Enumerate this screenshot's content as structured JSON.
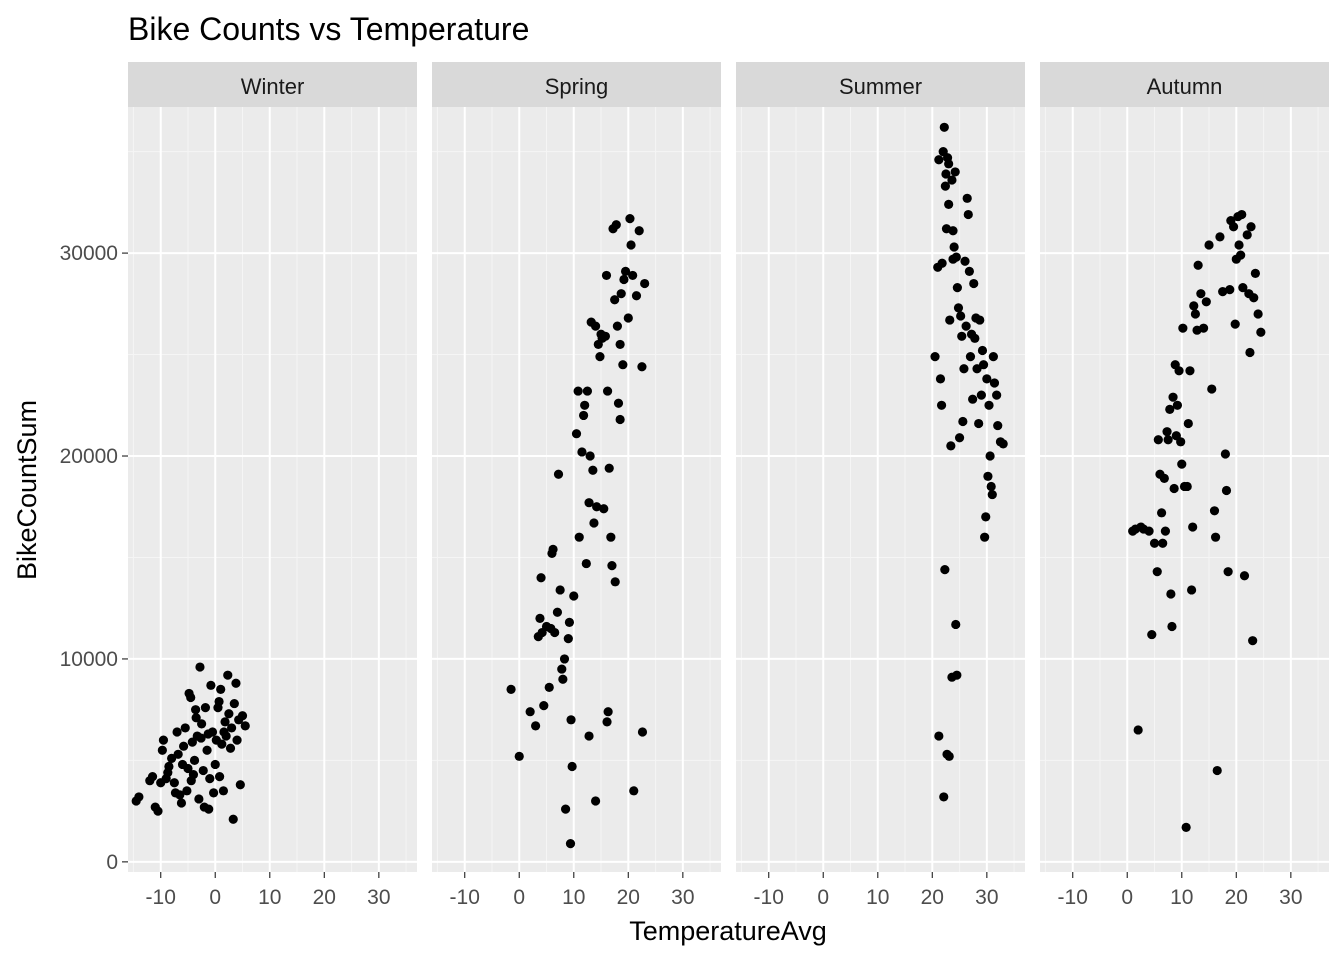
{
  "chart_data": {
    "type": "scatter",
    "title": "Bike Counts vs Temperature",
    "xlabel": "TemperatureAvg",
    "ylabel": "BikeCountSum",
    "xlim": [
      -16,
      37
    ],
    "ylim": [
      -500,
      37200
    ],
    "x_ticks": [
      -10,
      0,
      10,
      20,
      30
    ],
    "x_tick_labels": [
      "-10",
      "0",
      "10",
      "20",
      "30"
    ],
    "y_ticks": [
      0,
      10000,
      20000,
      30000
    ],
    "y_tick_labels": [
      "0",
      "10000",
      "20000",
      "30000"
    ],
    "grid": true,
    "facet_by": "season",
    "point_color": "#000000",
    "panel_background": "#ebebeb",
    "strip_background": "#d9d9d9",
    "facets": [
      {
        "label": "Winter",
        "points": [
          [
            -14.5,
            3000
          ],
          [
            -14,
            3200
          ],
          [
            -12,
            4000
          ],
          [
            -11.5,
            4200
          ],
          [
            -11,
            2700
          ],
          [
            -10.5,
            2500
          ],
          [
            -10,
            3900
          ],
          [
            -9.7,
            5500
          ],
          [
            -9.5,
            6000
          ],
          [
            -9,
            4100
          ],
          [
            -8.5,
            4700
          ],
          [
            -8,
            5100
          ],
          [
            -7.5,
            3900
          ],
          [
            -7,
            6400
          ],
          [
            -6.8,
            5300
          ],
          [
            -6.5,
            3300
          ],
          [
            -6.2,
            2900
          ],
          [
            -6,
            4800
          ],
          [
            -5.8,
            5700
          ],
          [
            -5.5,
            6600
          ],
          [
            -5.2,
            3500
          ],
          [
            -5,
            4600
          ],
          [
            -4.8,
            8300
          ],
          [
            -4.5,
            8100
          ],
          [
            -4.2,
            5900
          ],
          [
            -4,
            4300
          ],
          [
            -3.8,
            5000
          ],
          [
            -3.5,
            7100
          ],
          [
            -3.3,
            6200
          ],
          [
            -3,
            3100
          ],
          [
            -2.8,
            9600
          ],
          [
            -2.5,
            6800
          ],
          [
            -2.2,
            4500
          ],
          [
            -2,
            2700
          ],
          [
            -1.8,
            7600
          ],
          [
            -1.5,
            5500
          ],
          [
            -1.3,
            6300
          ],
          [
            -1,
            4100
          ],
          [
            -0.8,
            8700
          ],
          [
            -0.5,
            6400
          ],
          [
            -0.3,
            3400
          ],
          [
            0,
            4800
          ],
          [
            0.2,
            6000
          ],
          [
            0.5,
            7600
          ],
          [
            0.7,
            7900
          ],
          [
            1,
            8500
          ],
          [
            1.2,
            5800
          ],
          [
            1.5,
            3500
          ],
          [
            1.8,
            6900
          ],
          [
            2,
            6200
          ],
          [
            2.3,
            9200
          ],
          [
            2.5,
            7300
          ],
          [
            2.8,
            5600
          ],
          [
            3,
            6600
          ],
          [
            3.3,
            2100
          ],
          [
            3.5,
            7800
          ],
          [
            3.8,
            8800
          ],
          [
            4,
            6000
          ],
          [
            4.3,
            7000
          ],
          [
            4.6,
            3800
          ],
          [
            5,
            7200
          ],
          [
            5.5,
            6700
          ],
          [
            -3.6,
            7500
          ],
          [
            -2.6,
            6100
          ],
          [
            -1.2,
            2600
          ],
          [
            0.8,
            4200
          ],
          [
            1.6,
            6400
          ],
          [
            -4.4,
            4000
          ],
          [
            -7.3,
            3400
          ],
          [
            -8.7,
            4400
          ]
        ]
      },
      {
        "label": "Spring",
        "points": [
          [
            -1.5,
            8500
          ],
          [
            0,
            5200
          ],
          [
            2,
            7400
          ],
          [
            3,
            6700
          ],
          [
            3.5,
            11100
          ],
          [
            3.8,
            12000
          ],
          [
            4,
            14000
          ],
          [
            4.2,
            11300
          ],
          [
            4.5,
            7700
          ],
          [
            5,
            11600
          ],
          [
            5.5,
            8600
          ],
          [
            5.8,
            11500
          ],
          [
            6,
            15200
          ],
          [
            6.2,
            15400
          ],
          [
            6.5,
            11300
          ],
          [
            7,
            12300
          ],
          [
            7.2,
            19100
          ],
          [
            7.5,
            13400
          ],
          [
            7.8,
            9500
          ],
          [
            8,
            9000
          ],
          [
            8.3,
            10000
          ],
          [
            8.5,
            2600
          ],
          [
            9,
            11000
          ],
          [
            9.2,
            11800
          ],
          [
            9.5,
            7000
          ],
          [
            9.7,
            4700
          ],
          [
            10,
            13100
          ],
          [
            10.5,
            21100
          ],
          [
            10.8,
            23200
          ],
          [
            11,
            16000
          ],
          [
            11.5,
            20200
          ],
          [
            11.8,
            22000
          ],
          [
            12,
            22500
          ],
          [
            12.3,
            14700
          ],
          [
            12.5,
            23200
          ],
          [
            12.8,
            17700
          ],
          [
            13,
            20000
          ],
          [
            13.2,
            26600
          ],
          [
            13.5,
            19300
          ],
          [
            13.7,
            16700
          ],
          [
            14,
            26400
          ],
          [
            14.2,
            17500
          ],
          [
            14.5,
            25500
          ],
          [
            14.8,
            24900
          ],
          [
            15,
            26000
          ],
          [
            15.2,
            25800
          ],
          [
            15.5,
            17400
          ],
          [
            15.8,
            25900
          ],
          [
            16,
            28900
          ],
          [
            16.2,
            23200
          ],
          [
            16.5,
            19400
          ],
          [
            16.8,
            16000
          ],
          [
            17,
            14600
          ],
          [
            17.2,
            31200
          ],
          [
            17.5,
            27700
          ],
          [
            17.8,
            31400
          ],
          [
            18,
            26400
          ],
          [
            18.2,
            22600
          ],
          [
            18.5,
            21800
          ],
          [
            18.7,
            28000
          ],
          [
            19,
            24500
          ],
          [
            19.2,
            28700
          ],
          [
            19.5,
            29100
          ],
          [
            20,
            26800
          ],
          [
            20.3,
            31700
          ],
          [
            20.5,
            30400
          ],
          [
            21,
            3500
          ],
          [
            21.5,
            27900
          ],
          [
            22,
            31100
          ],
          [
            22.5,
            24400
          ],
          [
            23,
            28500
          ],
          [
            20.8,
            28900
          ],
          [
            17.6,
            13800
          ],
          [
            16.3,
            7400
          ],
          [
            16.1,
            6900
          ],
          [
            14,
            3000
          ],
          [
            12.8,
            6200
          ],
          [
            9.4,
            900
          ],
          [
            22.6,
            6400
          ],
          [
            18.5,
            25500
          ]
        ]
      },
      {
        "label": "Summer",
        "points": [
          [
            20.5,
            24900
          ],
          [
            21,
            29300
          ],
          [
            21.2,
            34600
          ],
          [
            21.5,
            23800
          ],
          [
            21.7,
            22500
          ],
          [
            22,
            35000
          ],
          [
            22.2,
            36200
          ],
          [
            22.4,
            33300
          ],
          [
            22.6,
            31200
          ],
          [
            22.8,
            34700
          ],
          [
            23,
            32400
          ],
          [
            23.2,
            26700
          ],
          [
            23.4,
            20500
          ],
          [
            23.6,
            33600
          ],
          [
            23.8,
            31100
          ],
          [
            24,
            30300
          ],
          [
            24.2,
            34000
          ],
          [
            24.4,
            29800
          ],
          [
            24.6,
            28300
          ],
          [
            24.8,
            27300
          ],
          [
            25,
            20900
          ],
          [
            25.2,
            26900
          ],
          [
            25.4,
            25900
          ],
          [
            25.6,
            21700
          ],
          [
            25.8,
            24300
          ],
          [
            26,
            29600
          ],
          [
            26.2,
            26400
          ],
          [
            26.4,
            32700
          ],
          [
            26.6,
            31900
          ],
          [
            26.8,
            29100
          ],
          [
            27,
            24900
          ],
          [
            27.2,
            26000
          ],
          [
            27.4,
            22800
          ],
          [
            27.6,
            28500
          ],
          [
            27.8,
            25800
          ],
          [
            28,
            26800
          ],
          [
            28.2,
            24300
          ],
          [
            28.5,
            21600
          ],
          [
            28.7,
            26700
          ],
          [
            29,
            23000
          ],
          [
            29.2,
            25200
          ],
          [
            29.4,
            24500
          ],
          [
            29.6,
            16000
          ],
          [
            29.8,
            17000
          ],
          [
            30,
            23800
          ],
          [
            30.2,
            19000
          ],
          [
            30.4,
            22500
          ],
          [
            30.6,
            20000
          ],
          [
            30.8,
            18500
          ],
          [
            31,
            18100
          ],
          [
            31.2,
            24900
          ],
          [
            31.4,
            23600
          ],
          [
            31.8,
            23000
          ],
          [
            32,
            21500
          ],
          [
            32.5,
            20700
          ],
          [
            33,
            20600
          ],
          [
            22.3,
            14400
          ],
          [
            24.3,
            11700
          ],
          [
            23.6,
            9100
          ],
          [
            24.5,
            9200
          ],
          [
            21.2,
            6200
          ],
          [
            22.1,
            3200
          ],
          [
            22.7,
            5300
          ],
          [
            23.1,
            5200
          ],
          [
            21.8,
            29500
          ],
          [
            23,
            34400
          ],
          [
            22.5,
            33900
          ],
          [
            23.8,
            29700
          ]
        ]
      },
      {
        "label": "Autumn",
        "points": [
          [
            1,
            16300
          ],
          [
            1.5,
            16400
          ],
          [
            2,
            6500
          ],
          [
            2.5,
            16500
          ],
          [
            3,
            16400
          ],
          [
            4,
            16300
          ],
          [
            4.5,
            11200
          ],
          [
            5,
            15700
          ],
          [
            5.5,
            14300
          ],
          [
            5.7,
            20800
          ],
          [
            6,
            19100
          ],
          [
            6.3,
            17200
          ],
          [
            6.5,
            15700
          ],
          [
            7,
            16300
          ],
          [
            7.3,
            21200
          ],
          [
            7.5,
            20800
          ],
          [
            7.8,
            22300
          ],
          [
            8,
            13200
          ],
          [
            8.2,
            11600
          ],
          [
            8.4,
            22900
          ],
          [
            8.6,
            18400
          ],
          [
            8.8,
            24500
          ],
          [
            9,
            21000
          ],
          [
            9.2,
            22500
          ],
          [
            9.5,
            24200
          ],
          [
            9.8,
            20700
          ],
          [
            10,
            19600
          ],
          [
            10.2,
            26300
          ],
          [
            10.5,
            18500
          ],
          [
            10.8,
            1700
          ],
          [
            11,
            18500
          ],
          [
            11.2,
            21600
          ],
          [
            11.5,
            24200
          ],
          [
            11.8,
            13400
          ],
          [
            12,
            16500
          ],
          [
            12.2,
            27400
          ],
          [
            12.5,
            27000
          ],
          [
            12.8,
            26200
          ],
          [
            13,
            29400
          ],
          [
            13.5,
            28000
          ],
          [
            14,
            26300
          ],
          [
            14.5,
            27600
          ],
          [
            15,
            30400
          ],
          [
            15.5,
            23300
          ],
          [
            16,
            17300
          ],
          [
            16.2,
            16000
          ],
          [
            16.5,
            4500
          ],
          [
            17,
            30800
          ],
          [
            17.5,
            28100
          ],
          [
            18,
            20100
          ],
          [
            18.2,
            18300
          ],
          [
            18.5,
            14300
          ],
          [
            19,
            31600
          ],
          [
            19.5,
            31300
          ],
          [
            20,
            29700
          ],
          [
            20.3,
            31800
          ],
          [
            20.5,
            30400
          ],
          [
            20.8,
            29900
          ],
          [
            21,
            31900
          ],
          [
            21.2,
            28300
          ],
          [
            21.5,
            14100
          ],
          [
            22,
            30900
          ],
          [
            22.3,
            28000
          ],
          [
            22.5,
            25100
          ],
          [
            22.7,
            31300
          ],
          [
            23,
            10900
          ],
          [
            23.2,
            27800
          ],
          [
            23.5,
            29000
          ],
          [
            24,
            27000
          ],
          [
            24.5,
            26100
          ],
          [
            19.8,
            26500
          ],
          [
            18.8,
            28200
          ],
          [
            6.8,
            18900
          ]
        ]
      }
    ]
  }
}
